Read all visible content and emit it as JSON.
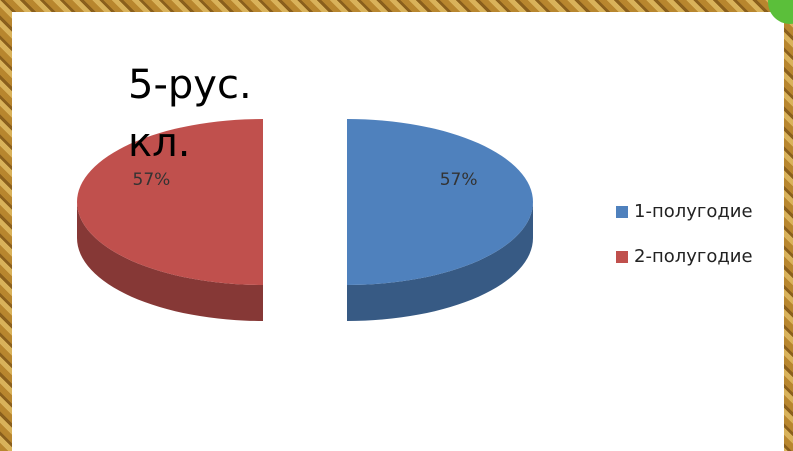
{
  "chart_data": {
    "type": "pie3d",
    "title": "5-рус. кл.",
    "categories": [
      "1-полугодие",
      "2-полугодие"
    ],
    "series": [
      {
        "values": [
          57,
          57
        ],
        "value_labels": [
          "57%",
          "57%"
        ],
        "colors": [
          "#4f81bd",
          "#c0504d"
        ]
      }
    ],
    "legend": "right"
  }
}
